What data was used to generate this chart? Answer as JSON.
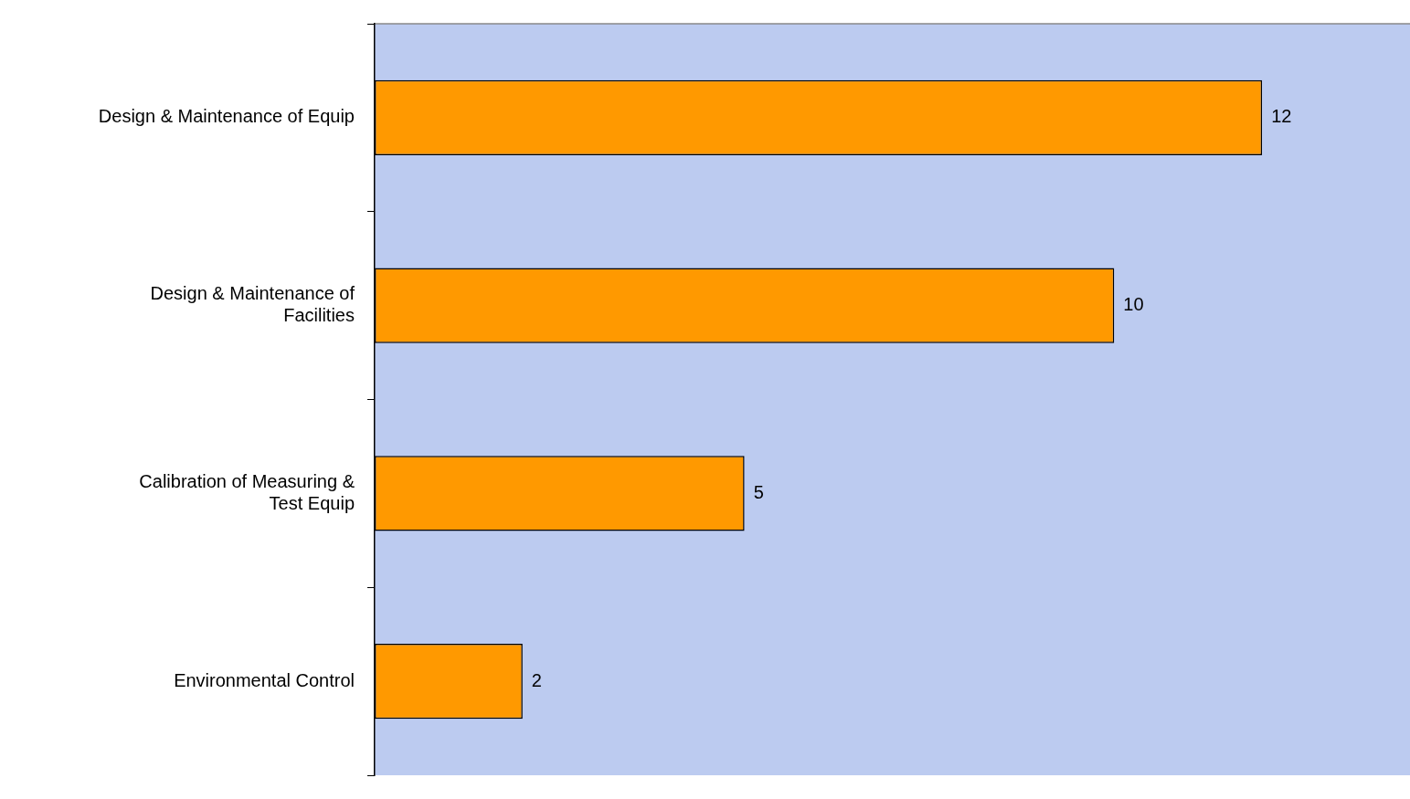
{
  "chart_data": {
    "type": "bar",
    "orientation": "horizontal",
    "categories": [
      "Design & Maintenance of Equip",
      "Design & Maintenance of Facilities",
      "Calibration of Measuring & Test Equip",
      "Environmental Control"
    ],
    "values": [
      12,
      10,
      5,
      2
    ],
    "color": "#ff9900",
    "data_labels": true,
    "tick_labels": "y",
    "grid": false,
    "legend": false
  }
}
